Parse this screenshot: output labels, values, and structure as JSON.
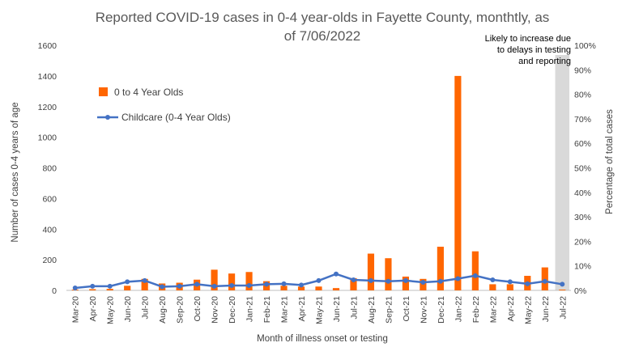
{
  "chart_data": {
    "type": "bar",
    "title_lines": [
      "Reported COVID-19 cases in 0-4 year-olds in Fayette County, monthtly, as",
      "of 7/06/2022"
    ],
    "xlabel": "Month of illness onset or testing",
    "ylabel": "Number of cases 0-4 years of age",
    "y2label": "Percentage of total cases",
    "ylim": [
      0,
      1600
    ],
    "y2lim": [
      0,
      1
    ],
    "yticks": [
      "0",
      "200",
      "400",
      "600",
      "800",
      "1000",
      "1200",
      "1400",
      "1600"
    ],
    "y2ticks": [
      "0%",
      "10%",
      "20%",
      "30%",
      "40%",
      "50%",
      "60%",
      "70%",
      "80%",
      "90%",
      "100%"
    ],
    "categories": [
      "Mar-20",
      "Apr-20",
      "May-20",
      "Jun-20",
      "Jul-20",
      "Aug-20",
      "Sep-20",
      "Oct-20",
      "Nov-20",
      "Dec-20",
      "Jan-21",
      "Feb-21",
      "Mar-21",
      "Apr-21",
      "May-21",
      "Jun-21",
      "Jul-21",
      "Aug-21",
      "Sep-21",
      "Oct-21",
      "Nov-21",
      "Dec-21",
      "Jan-22",
      "Feb-22",
      "Mar-22",
      "Apr-22",
      "May-22",
      "Jun-22",
      "Jul-22"
    ],
    "series": [
      {
        "name": "0 to 4 Year Olds",
        "kind": "bar",
        "axis": "left",
        "color": "#FF6600",
        "values": [
          5,
          8,
          10,
          30,
          75,
          45,
          50,
          70,
          135,
          110,
          120,
          60,
          30,
          25,
          25,
          15,
          80,
          240,
          210,
          90,
          75,
          285,
          1400,
          255,
          40,
          40,
          95,
          150,
          5
        ]
      },
      {
        "name": "Childcare (0-4 Year Olds)",
        "kind": "line",
        "axis": "right",
        "color": "#4472C4",
        "values": [
          0.01,
          0.017,
          0.017,
          0.035,
          0.04,
          0.015,
          0.017,
          0.025,
          0.017,
          0.02,
          0.02,
          0.025,
          0.027,
          0.022,
          0.04,
          0.067,
          0.043,
          0.04,
          0.037,
          0.04,
          0.033,
          0.037,
          0.048,
          0.06,
          0.043,
          0.035,
          0.027,
          0.037,
          0.025
        ]
      }
    ],
    "legend": "top-left",
    "grid": false,
    "annotation": {
      "lines": [
        "Likely to increase due",
        "to delays in testing",
        "and reporting"
      ],
      "shaded_category": "Jul-22",
      "shade_color": "#D9D9D9"
    }
  }
}
